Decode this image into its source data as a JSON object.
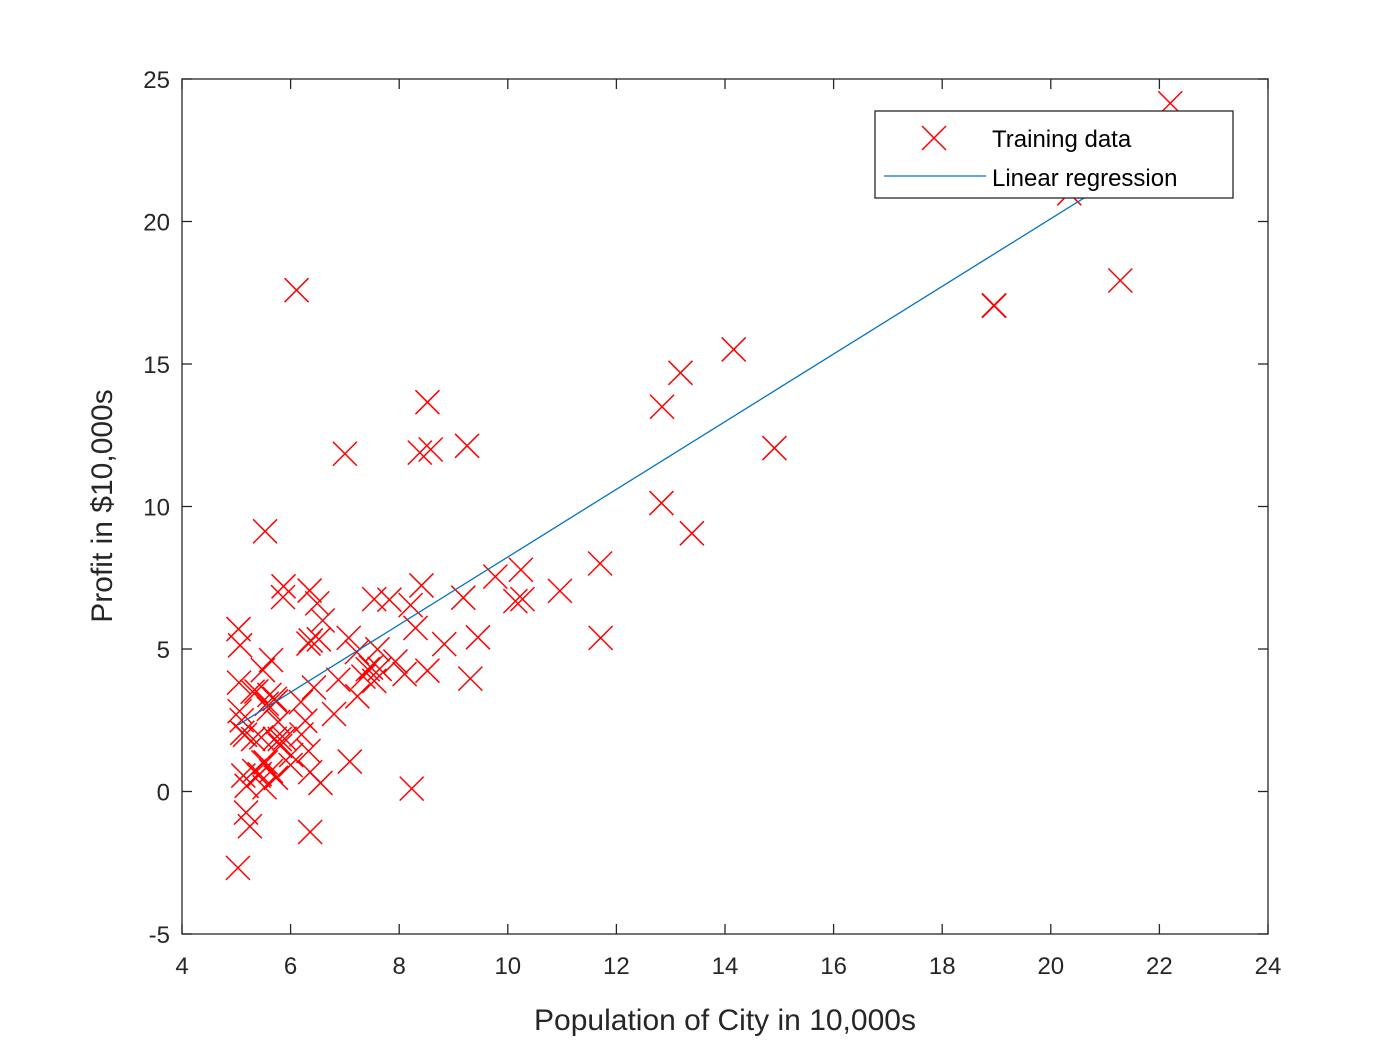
{
  "chart_data": {
    "type": "scatter",
    "xlabel": "Population of City in 10,000s",
    "ylabel": "Profit in $10,000s",
    "xlim": [
      4,
      24
    ],
    "ylim": [
      -5,
      25
    ],
    "xticks": [
      4,
      6,
      8,
      10,
      12,
      14,
      16,
      18,
      20,
      22,
      24
    ],
    "yticks": [
      -5,
      0,
      5,
      10,
      15,
      20,
      25
    ],
    "grid": false,
    "legend_position": "top-right",
    "series": [
      {
        "name": "Training data",
        "kind": "scatter",
        "marker": "x",
        "color": "#ff0000",
        "points": [
          [
            6.11,
            17.59
          ],
          [
            5.53,
            9.13
          ],
          [
            8.52,
            13.66
          ],
          [
            7.0,
            11.85
          ],
          [
            5.86,
            6.82
          ],
          [
            8.38,
            11.89
          ],
          [
            7.48,
            4.35
          ],
          [
            8.58,
            12.0
          ],
          [
            6.49,
            6.6
          ],
          [
            5.05,
            3.82
          ],
          [
            5.71,
            3.25
          ],
          [
            14.16,
            15.51
          ],
          [
            5.73,
            3.16
          ],
          [
            8.41,
            7.23
          ],
          [
            5.64,
            0.72
          ],
          [
            5.37,
            3.51
          ],
          [
            6.37,
            5.3
          ],
          [
            5.13,
            0.56
          ],
          [
            6.43,
            3.65
          ],
          [
            7.07,
            5.39
          ],
          [
            6.19,
            3.14
          ],
          [
            20.27,
            21.77
          ],
          [
            5.49,
            4.26
          ],
          [
            6.33,
            5.19
          ],
          [
            5.56,
            3.08
          ],
          [
            18.95,
            17.05
          ],
          [
            12.83,
            10.12
          ],
          [
            10.96,
            7.04
          ],
          [
            13.18,
            14.69
          ],
          [
            22.2,
            24.15
          ],
          [
            5.25,
            -1.22
          ],
          [
            6.59,
            6.0
          ],
          [
            9.25,
            12.13
          ],
          [
            5.89,
            1.85
          ],
          [
            8.21,
            6.54
          ],
          [
            7.93,
            4.56
          ],
          [
            8.1,
            4.12
          ],
          [
            5.61,
            3.39
          ],
          [
            12.84,
            13.5
          ],
          [
            6.35,
            7.05
          ],
          [
            5.41,
            0.56
          ],
          [
            6.88,
            3.92
          ],
          [
            11.71,
            5.39
          ],
          [
            5.77,
            2.44
          ],
          [
            7.82,
            6.73
          ],
          [
            7.09,
            1.05
          ],
          [
            5.07,
            5.13
          ],
          [
            5.8,
            1.84
          ],
          [
            11.7,
            8.0
          ],
          [
            5.54,
            1.02
          ],
          [
            7.54,
            6.75
          ],
          [
            5.31,
            1.84
          ],
          [
            7.42,
            4.29
          ],
          [
            7.6,
            4.99
          ],
          [
            6.33,
            1.42
          ],
          [
            6.36,
            -1.42
          ],
          [
            6.27,
            2.48
          ],
          [
            5.64,
            4.61
          ],
          [
            9.31,
            3.96
          ],
          [
            9.45,
            5.41
          ],
          [
            8.83,
            5.17
          ],
          [
            5.18,
            -0.74
          ],
          [
            21.28,
            17.93
          ],
          [
            14.91,
            12.05
          ],
          [
            18.96,
            17.05
          ],
          [
            7.22,
            4.89
          ],
          [
            8.3,
            5.74
          ],
          [
            10.24,
            7.78
          ],
          [
            5.5,
            1.02
          ],
          [
            20.34,
            20.99
          ],
          [
            10.14,
            6.68
          ],
          [
            7.34,
            4.03
          ],
          [
            6.01,
            1.28
          ],
          [
            7.23,
            3.34
          ],
          [
            5.03,
            -2.68
          ],
          [
            6.55,
            0.3
          ],
          [
            7.54,
            3.88
          ],
          [
            5.04,
            5.7
          ],
          [
            10.27,
            6.75
          ],
          [
            5.11,
            2.06
          ],
          [
            5.73,
            0.48
          ],
          [
            5.19,
            0.2
          ],
          [
            6.36,
            0.68
          ],
          [
            9.77,
            7.54
          ],
          [
            6.52,
            5.34
          ],
          [
            8.52,
            4.24
          ],
          [
            9.18,
            6.8
          ],
          [
            6.0,
            0.93
          ],
          [
            5.52,
            0.15
          ],
          [
            5.06,
            2.82
          ],
          [
            5.71,
            1.85
          ],
          [
            7.64,
            4.3
          ],
          [
            5.87,
            7.2
          ],
          [
            5.16,
            1.99
          ],
          [
            5.33,
            0.72
          ],
          [
            13.39,
            9.06
          ],
          [
            5.43,
            0.61
          ],
          [
            8.23,
            0.1
          ],
          [
            5.81,
            1.6
          ],
          [
            6.8,
            2.72
          ],
          [
            5.1,
            2.5
          ],
          [
            5.46,
            1.9
          ],
          [
            6.2,
            2.0
          ],
          [
            5.3,
            3.5
          ],
          [
            5.6,
            2.9
          ]
        ]
      },
      {
        "name": "Linear regression",
        "kind": "line",
        "color": "#0072bd",
        "points": [
          [
            5.03,
            2.33
          ],
          [
            22.2,
            22.71
          ]
        ]
      }
    ]
  }
}
